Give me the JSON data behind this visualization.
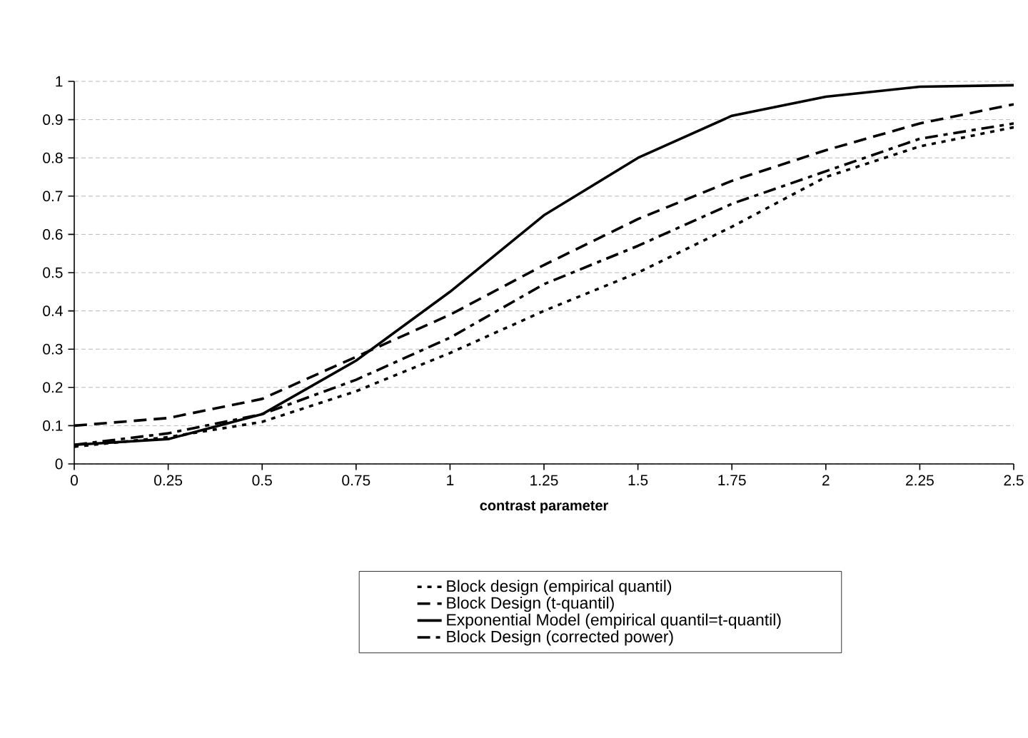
{
  "chart_data": {
    "type": "line",
    "xlabel": "contrast parameter",
    "x": [
      0,
      0.25,
      0.5,
      0.75,
      1,
      1.25,
      1.5,
      1.75,
      2,
      2.25,
      2.5
    ],
    "series": [
      {
        "name": "Block design (empirical quantil)",
        "color": "#000000",
        "line_style": "dotted",
        "values": [
          0.045,
          0.07,
          0.11,
          0.19,
          0.29,
          0.4,
          0.5,
          0.62,
          0.75,
          0.83,
          0.88
        ]
      },
      {
        "name": "Block Design (t-quantil)",
        "color": "#000000",
        "line_style": "dashed",
        "values": [
          0.1,
          0.12,
          0.17,
          0.28,
          0.39,
          0.52,
          0.64,
          0.74,
          0.82,
          0.89,
          0.94
        ]
      },
      {
        "name": "Exponential Model (empirical quantil=t-quantil)",
        "color": "#000000",
        "line_style": "solid",
        "values": [
          0.05,
          0.065,
          0.13,
          0.27,
          0.45,
          0.65,
          0.8,
          0.91,
          0.96,
          0.986,
          0.99
        ]
      },
      {
        "name": "Block Design (corrected power)",
        "color": "#000000",
        "line_style": "dashdot",
        "values": [
          0.05,
          0.08,
          0.13,
          0.22,
          0.33,
          0.47,
          0.57,
          0.68,
          0.765,
          0.85,
          0.89
        ]
      }
    ],
    "xlim": [
      0,
      2.5
    ],
    "xticks": [
      0,
      0.25,
      0.5,
      0.75,
      1,
      1.25,
      1.5,
      1.75,
      2,
      2.25,
      2.5
    ],
    "ylim": [
      0,
      1
    ],
    "yticks": [
      0,
      0.1,
      0.2,
      0.3,
      0.4,
      0.5,
      0.6,
      0.7,
      0.8,
      0.9,
      1
    ],
    "grid": "y",
    "legend": "bottom",
    "marker": "none"
  }
}
